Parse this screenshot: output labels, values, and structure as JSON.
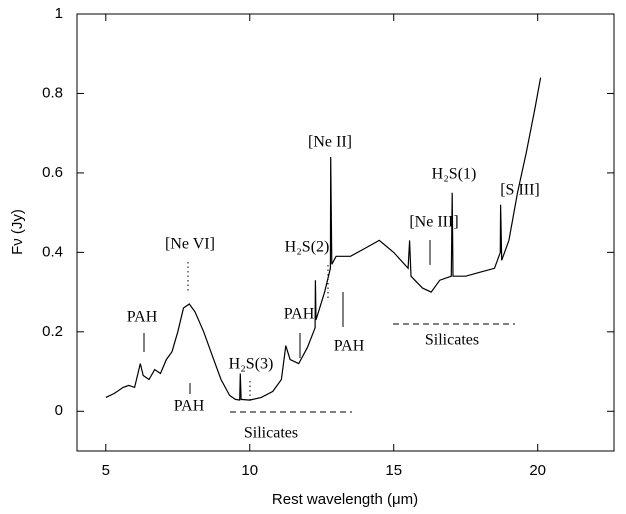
{
  "chart_data": {
    "type": "line",
    "xlabel": "Rest wavelength (μm)",
    "ylabel": "Fν (Jy)",
    "xlim": [
      4,
      22.65
    ],
    "xticks": [
      5,
      10,
      15,
      20
    ],
    "ylim": [
      -0.1,
      1
    ],
    "yticks": [
      0,
      0.2,
      0.4,
      0.6,
      0.8,
      1
    ],
    "color": "#000000",
    "x": [
      5.0,
      5.3,
      5.6,
      5.8,
      6.0,
      6.2,
      6.3,
      6.5,
      6.7,
      6.9,
      7.1,
      7.3,
      7.5,
      7.7,
      7.9,
      8.1,
      8.4,
      8.7,
      9.0,
      9.3,
      9.5,
      9.65,
      9.67,
      9.7,
      10.0,
      10.4,
      10.8,
      11.1,
      11.25,
      11.4,
      11.7,
      12.0,
      12.27,
      12.28,
      12.3,
      12.6,
      12.8,
      12.81,
      12.85,
      13.0,
      13.5,
      14.0,
      14.5,
      15.0,
      15.5,
      15.55,
      15.6,
      16.0,
      16.3,
      16.6,
      17.0,
      17.03,
      17.06,
      17.5,
      18.0,
      18.5,
      18.7,
      18.71,
      18.75,
      19.0,
      19.3,
      19.6,
      19.9,
      20.1
    ],
    "values": [
      0.035,
      0.045,
      0.06,
      0.065,
      0.06,
      0.12,
      0.09,
      0.08,
      0.105,
      0.095,
      0.13,
      0.15,
      0.2,
      0.26,
      0.27,
      0.25,
      0.2,
      0.14,
      0.08,
      0.04,
      0.03,
      0.028,
      0.095,
      0.03,
      0.028,
      0.035,
      0.05,
      0.08,
      0.165,
      0.13,
      0.12,
      0.16,
      0.21,
      0.33,
      0.23,
      0.3,
      0.36,
      0.64,
      0.37,
      0.39,
      0.39,
      0.41,
      0.43,
      0.4,
      0.36,
      0.43,
      0.34,
      0.31,
      0.3,
      0.33,
      0.34,
      0.55,
      0.34,
      0.34,
      0.35,
      0.36,
      0.4,
      0.52,
      0.38,
      0.43,
      0.55,
      0.65,
      0.76,
      0.84
    ],
    "annotations": [
      "PAH",
      "[Ne VI]",
      "PAH",
      "H₂S(3)",
      "PAH",
      "H₂S(2)",
      "[Ne II]",
      "PAH",
      "[Ne III]",
      "H₂S(1)",
      "[S III]",
      "Silicates",
      "Silicates"
    ]
  }
}
